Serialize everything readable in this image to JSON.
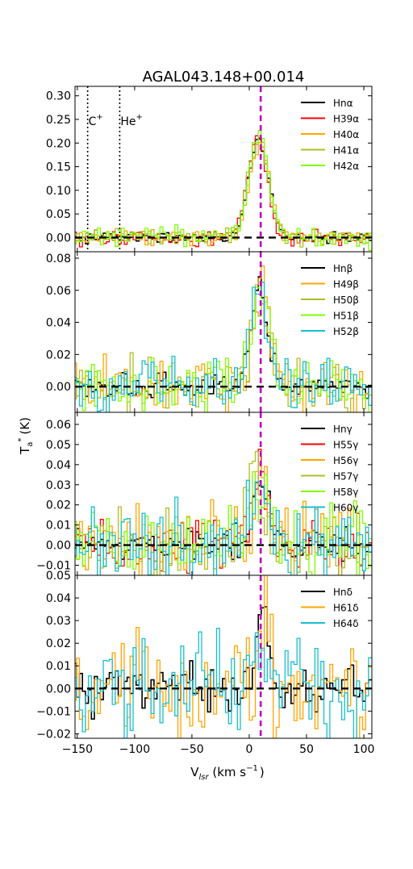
{
  "chart_data": {
    "type": "line",
    "title": "AGAL043.148+00.014",
    "xlabel": "V_lsr (km s^-1)",
    "xlabel_main": "V",
    "xlabel_sub": "lsr",
    "xlabel_unit": " (km s",
    "xlabel_sup": "−1",
    "xlabel_end": ")",
    "ylabel": "T_a^* (K)",
    "ylabel_main": "T",
    "ylabel_sub": "a",
    "ylabel_sup": "*",
    "ylabel_unit": "(K)",
    "xlim": [
      -152,
      107
    ],
    "xticks": [
      -150,
      -100,
      -50,
      0,
      50,
      100
    ],
    "xtick_labels": [
      "−150",
      "−100",
      "−50",
      "0",
      "50",
      "100"
    ],
    "grid": false,
    "reference_velocity": 10,
    "panels": [
      {
        "id": "alpha",
        "ylim": [
          -0.03,
          0.32
        ],
        "yticks": [
          0.0,
          0.05,
          0.1,
          0.15,
          0.2,
          0.25,
          0.3
        ],
        "ytick_labels": [
          "0.00",
          "0.05",
          "0.10",
          "0.15",
          "0.20",
          "0.25",
          "0.30"
        ],
        "annotations": [
          {
            "text": "C",
            "sup": "+",
            "v": -141
          },
          {
            "text": "He",
            "sup": "+",
            "v": -113
          }
        ],
        "series": [
          {
            "name": "Hnα",
            "color": "#000000",
            "seed": 3,
            "noise": 0.006,
            "peak": 0.205,
            "center": 8,
            "width": 20,
            "sharp": 0
          },
          {
            "name": "H39α",
            "color": "#ff0000",
            "seed": 11,
            "noise": 0.008,
            "peak": 0.21,
            "center": 7,
            "width": 20,
            "sharp": 0
          },
          {
            "name": "H40α",
            "color": "#ffa500",
            "seed": 23,
            "noise": 0.009,
            "peak": 0.2,
            "center": 9,
            "width": 20,
            "sharp": 0
          },
          {
            "name": "H41α",
            "color": "#b2be24",
            "seed": 37,
            "noise": 0.009,
            "peak": 0.205,
            "center": 8,
            "width": 21,
            "sharp": 0
          },
          {
            "name": "H42α",
            "color": "#7fff00",
            "seed": 51,
            "noise": 0.01,
            "peak": 0.22,
            "center": 9,
            "width": 20,
            "sharp": 0
          }
        ]
      },
      {
        "id": "beta",
        "ylim": [
          -0.016,
          0.084
        ],
        "yticks": [
          0.0,
          0.02,
          0.04,
          0.06,
          0.08
        ],
        "ytick_labels": [
          "0.00",
          "0.02",
          "0.04",
          "0.06",
          "0.08"
        ],
        "series": [
          {
            "name": "Hnβ",
            "color": "#000000",
            "seed": 5,
            "noise": 0.004,
            "peak": 0.055,
            "center": 9,
            "width": 18,
            "sharp": 0.005
          },
          {
            "name": "H49β",
            "color": "#ffa500",
            "seed": 17,
            "noise": 0.009,
            "peak": 0.065,
            "center": 11,
            "width": 16,
            "sharp": 0.012
          },
          {
            "name": "H50β",
            "color": "#b2be24",
            "seed": 29,
            "noise": 0.009,
            "peak": 0.058,
            "center": 10,
            "width": 18,
            "sharp": 0.004
          },
          {
            "name": "H51β",
            "color": "#7fff00",
            "seed": 43,
            "noise": 0.009,
            "peak": 0.055,
            "center": 10,
            "width": 20,
            "sharp": 0
          },
          {
            "name": "H52β",
            "color": "#19bfcf",
            "seed": 61,
            "noise": 0.009,
            "peak": 0.056,
            "center": 9,
            "width": 18,
            "sharp": 0
          }
        ]
      },
      {
        "id": "gamma",
        "ylim": [
          -0.015,
          0.066
        ],
        "yticks": [
          -0.01,
          0.0,
          0.01,
          0.02,
          0.03,
          0.04,
          0.05,
          0.06
        ],
        "ytick_labels": [
          "−0.01",
          "0.00",
          "0.01",
          "0.02",
          "0.03",
          "0.04",
          "0.05",
          "0.06"
        ],
        "series": [
          {
            "name": "Hnγ",
            "color": "#000000",
            "seed": 7,
            "noise": 0.004,
            "peak": 0.032,
            "center": 11,
            "width": 16,
            "sharp": 0
          },
          {
            "name": "H55γ",
            "color": "#ff0000",
            "seed": 19,
            "noise": 0.008,
            "peak": 0.034,
            "center": 11,
            "width": 16,
            "sharp": 0
          },
          {
            "name": "H56γ",
            "color": "#ffa500",
            "seed": 31,
            "noise": 0.009,
            "peak": 0.036,
            "center": 13,
            "width": 16,
            "sharp": 0.006
          },
          {
            "name": "H57γ",
            "color": "#b2be24",
            "seed": 47,
            "noise": 0.009,
            "peak": 0.03,
            "center": 4,
            "width": 18,
            "sharp": 0.01
          },
          {
            "name": "H58γ",
            "color": "#7fff00",
            "seed": 59,
            "noise": 0.009,
            "peak": 0.03,
            "center": 9,
            "width": 18,
            "sharp": 0
          },
          {
            "name": "H60γ",
            "color": "#19bfcf",
            "seed": 71,
            "noise": 0.011,
            "peak": 0.035,
            "center": 8,
            "width": 14,
            "sharp": 0.012
          }
        ]
      },
      {
        "id": "delta",
        "ylim": [
          -0.022,
          0.05
        ],
        "yticks": [
          -0.02,
          -0.01,
          0.0,
          0.01,
          0.02,
          0.03,
          0.04,
          0.05
        ],
        "ytick_labels": [
          "−0.02",
          "−0.01",
          "0.00",
          "0.01",
          "0.02",
          "0.03",
          "0.04",
          "0.05"
        ],
        "series": [
          {
            "name": "Hnδ",
            "color": "#000000",
            "seed": 13,
            "noise": 0.006,
            "peak": 0.024,
            "center": 12,
            "width": 14,
            "sharp": 0.008
          },
          {
            "name": "H61δ",
            "color": "#ffa500",
            "seed": 41,
            "noise": 0.012,
            "peak": 0.028,
            "center": 13,
            "width": 14,
            "sharp": 0.012
          },
          {
            "name": "H64δ",
            "color": "#19bfcf",
            "seed": 67,
            "noise": 0.012,
            "peak": 0.024,
            "center": 10,
            "width": 14,
            "sharp": 0.008
          }
        ]
      }
    ]
  }
}
